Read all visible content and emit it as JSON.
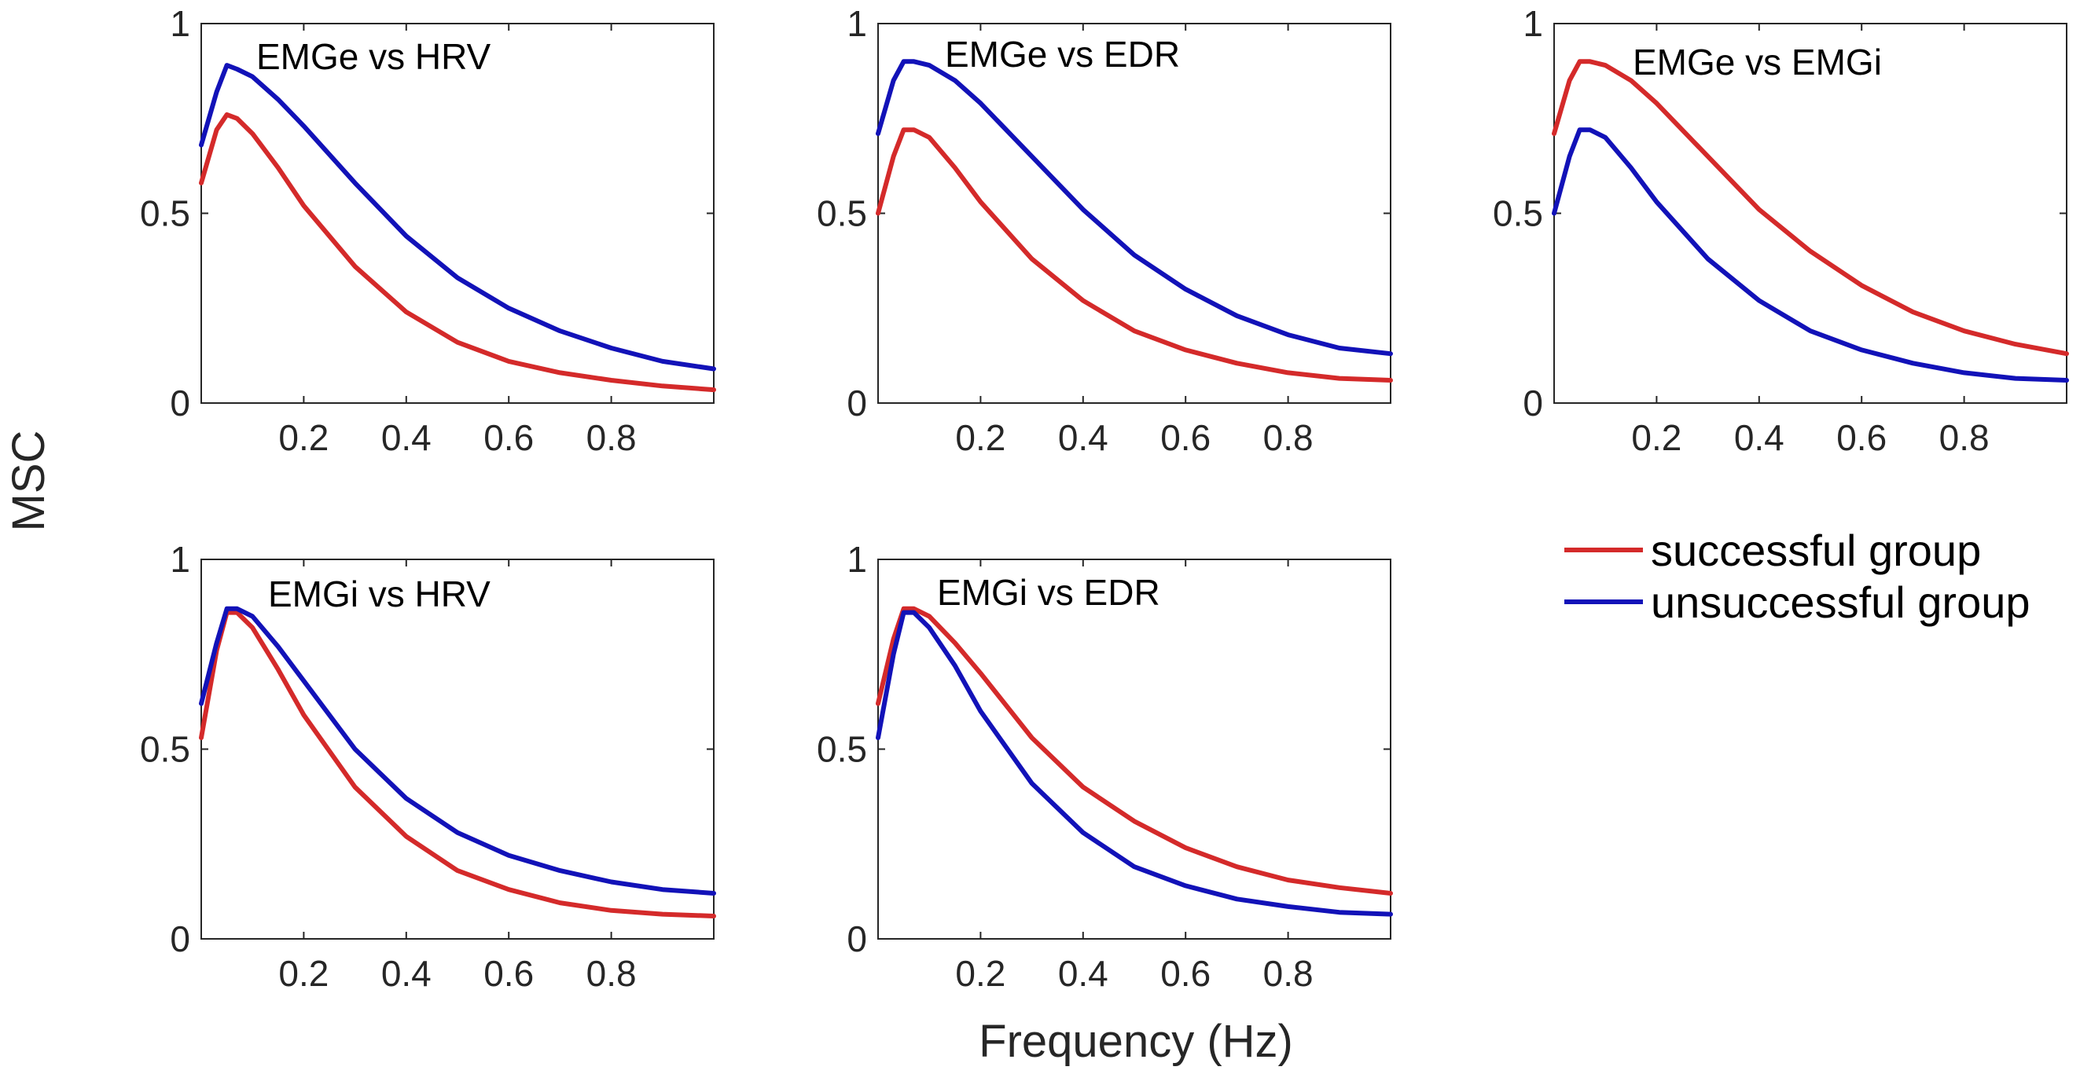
{
  "chart_data": {
    "type": "line",
    "xlabel": "Frequency (Hz)",
    "ylabel": "MSC",
    "xlim": [
      0,
      1
    ],
    "ylim": [
      0,
      1
    ],
    "xticks": [
      0.2,
      0.4,
      0.6,
      0.8
    ],
    "xtick_labels": [
      "0.2",
      "0.4",
      "0.6",
      "0.8"
    ],
    "yticks": [
      0,
      0.5,
      1
    ],
    "ytick_labels": [
      "0",
      "0.5",
      "1"
    ],
    "grid": false,
    "legend": {
      "placement": "right, second row",
      "entries": [
        {
          "name": "successful group",
          "color": "#d42a2a"
        },
        {
          "name": "unsuccessful group",
          "color": "#1212b8"
        }
      ]
    },
    "x": [
      0.0,
      0.03,
      0.05,
      0.07,
      0.1,
      0.15,
      0.2,
      0.3,
      0.4,
      0.5,
      0.6,
      0.7,
      0.8,
      0.9,
      1.0
    ],
    "panels": [
      {
        "title": "EMGe vs HRV",
        "series": [
          {
            "name": "successful group",
            "values": [
              0.58,
              0.72,
              0.76,
              0.75,
              0.71,
              0.62,
              0.52,
              0.36,
              0.24,
              0.16,
              0.11,
              0.08,
              0.06,
              0.045,
              0.035
            ]
          },
          {
            "name": "unsuccessful group",
            "values": [
              0.68,
              0.82,
              0.89,
              0.88,
              0.86,
              0.8,
              0.73,
              0.58,
              0.44,
              0.33,
              0.25,
              0.19,
              0.145,
              0.11,
              0.09
            ]
          }
        ]
      },
      {
        "title": "EMGe vs EDR",
        "series": [
          {
            "name": "successful group",
            "values": [
              0.5,
              0.65,
              0.72,
              0.72,
              0.7,
              0.62,
              0.53,
              0.38,
              0.27,
              0.19,
              0.14,
              0.105,
              0.08,
              0.065,
              0.06
            ]
          },
          {
            "name": "unsuccessful group",
            "values": [
              0.71,
              0.85,
              0.9,
              0.9,
              0.89,
              0.85,
              0.79,
              0.65,
              0.51,
              0.39,
              0.3,
              0.23,
              0.18,
              0.145,
              0.13
            ]
          }
        ]
      },
      {
        "title": "EMGe vs EMGi",
        "series": [
          {
            "name": "successful group",
            "values": [
              0.71,
              0.85,
              0.9,
              0.9,
              0.89,
              0.85,
              0.79,
              0.65,
              0.51,
              0.4,
              0.31,
              0.24,
              0.19,
              0.155,
              0.13
            ]
          },
          {
            "name": "unsuccessful group",
            "values": [
              0.5,
              0.65,
              0.72,
              0.72,
              0.7,
              0.62,
              0.53,
              0.38,
              0.27,
              0.19,
              0.14,
              0.105,
              0.08,
              0.065,
              0.06
            ]
          }
        ]
      },
      {
        "title": "EMGi vs HRV",
        "series": [
          {
            "name": "successful group",
            "values": [
              0.53,
              0.76,
              0.86,
              0.86,
              0.82,
              0.71,
              0.59,
              0.4,
              0.27,
              0.18,
              0.13,
              0.095,
              0.075,
              0.065,
              0.06
            ]
          },
          {
            "name": "unsuccessful group",
            "values": [
              0.62,
              0.78,
              0.87,
              0.87,
              0.85,
              0.77,
              0.68,
              0.5,
              0.37,
              0.28,
              0.22,
              0.18,
              0.15,
              0.13,
              0.12
            ]
          }
        ]
      },
      {
        "title": "EMGi vs EDR",
        "series": [
          {
            "name": "successful group",
            "values": [
              0.62,
              0.79,
              0.87,
              0.87,
              0.85,
              0.78,
              0.7,
              0.53,
              0.4,
              0.31,
              0.24,
              0.19,
              0.155,
              0.135,
              0.12
            ]
          },
          {
            "name": "unsuccessful group",
            "values": [
              0.53,
              0.75,
              0.86,
              0.86,
              0.82,
              0.72,
              0.6,
              0.41,
              0.28,
              0.19,
              0.14,
              0.105,
              0.085,
              0.07,
              0.065
            ]
          }
        ]
      }
    ]
  }
}
